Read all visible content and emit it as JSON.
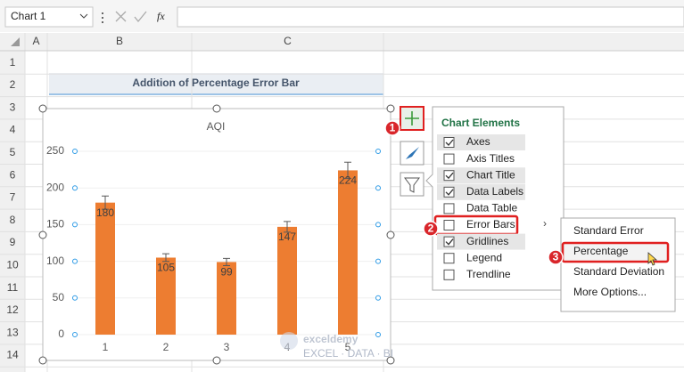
{
  "toolbar": {
    "name_box": "Chart 1",
    "fx": "fx"
  },
  "columns": [
    "A",
    "B",
    "C"
  ],
  "rows": [
    1,
    2,
    3,
    4,
    5,
    6,
    7,
    8,
    9,
    10,
    11,
    12,
    13,
    14
  ],
  "title_cell": "Addition of Percentage Error Bar",
  "chart_data": {
    "type": "bar",
    "title": "AQI",
    "categories": [
      "1",
      "2",
      "3",
      "4",
      "5"
    ],
    "values": [
      180,
      105,
      99,
      147,
      224
    ],
    "errors": [
      9,
      5.25,
      4.95,
      7.35,
      11.2
    ],
    "color": "#ed7d31",
    "ylim": [
      0,
      250
    ],
    "yticks": [
      0,
      50,
      100,
      150,
      200,
      250
    ],
    "grid": true
  },
  "chart_elements": {
    "title": "Chart Elements",
    "items": [
      {
        "label": "Axes",
        "checked": true
      },
      {
        "label": "Axis Titles",
        "checked": false
      },
      {
        "label": "Chart Title",
        "checked": true
      },
      {
        "label": "Data Labels",
        "checked": true
      },
      {
        "label": "Data Table",
        "checked": false
      },
      {
        "label": "Error Bars",
        "checked": false
      },
      {
        "label": "Gridlines",
        "checked": true
      },
      {
        "label": "Legend",
        "checked": false
      },
      {
        "label": "Trendline",
        "checked": false
      }
    ]
  },
  "error_bar_menu": [
    "Standard Error",
    "Percentage",
    "Standard Deviation",
    "More Options..."
  ],
  "steps": [
    1,
    2,
    3
  ],
  "watermark": {
    "brand": "exceldemy",
    "tagline": "EXCEL · DATA · BI"
  }
}
